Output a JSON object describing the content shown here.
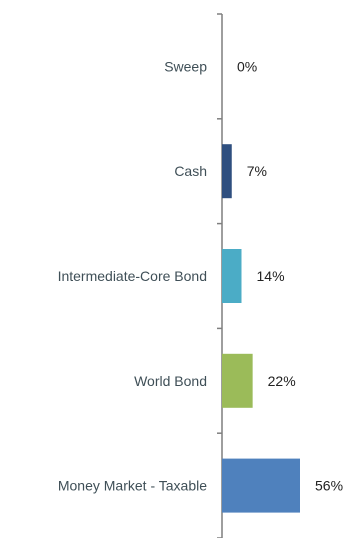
{
  "chart_data": {
    "type": "bar",
    "orientation": "horizontal",
    "categories": [
      "Sweep",
      "Cash",
      "Intermediate-Core Bond",
      "World Bond",
      "Money Market - Taxable"
    ],
    "values": [
      0,
      7,
      14,
      22,
      56
    ],
    "value_labels": [
      "0%",
      "7%",
      "14%",
      "22%",
      "56%"
    ],
    "colors": [
      "#4f81bd",
      "#2f4f7f",
      "#4bacc6",
      "#9bbb59",
      "#4f81bd"
    ],
    "xlim": [
      0,
      60
    ],
    "grid": false,
    "legend": "none"
  }
}
